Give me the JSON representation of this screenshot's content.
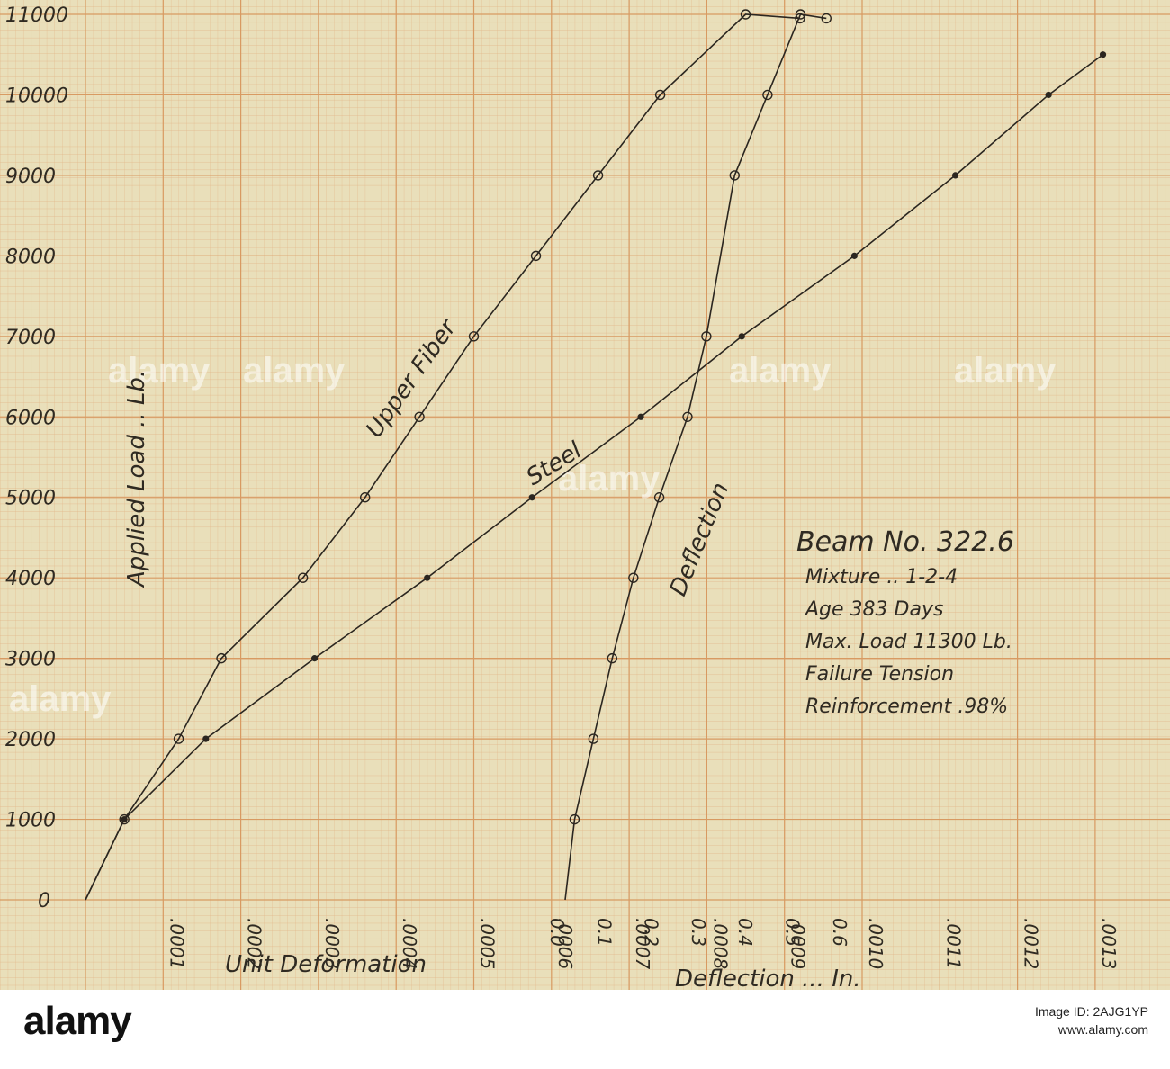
{
  "chart_data": {
    "type": "line",
    "title": "Beam No. 322.6",
    "details": [
      "Mixture .. 1-2-4",
      "Age 383 Days",
      "Max. Load 11300 Lb.",
      "Failure Tension",
      "Reinforcement .98%"
    ],
    "ylabel": "Applied Load .. Lb.",
    "xlabel": "Unit Deformation",
    "x2label": "Deflection ... In.",
    "ylim": [
      0,
      11000
    ],
    "xlim": [
      0,
      0.0013
    ],
    "x2lim": [
      -0.03,
      0.68
    ],
    "y_ticks": [
      "0",
      "1000",
      "2000",
      "3000",
      "4000",
      "5000",
      "6000",
      "7000",
      "8000",
      "9000",
      "10000",
      "11000"
    ],
    "x_ticks": [
      ".0001",
      ".0002",
      ".0003",
      ".0004",
      ".0005",
      ".0006",
      ".0007",
      ".0008",
      ".0009",
      ".0010",
      ".0011",
      ".0012",
      ".0013"
    ],
    "x2_ticks": [
      "0.0",
      "0.1",
      "0.2",
      "0.3",
      "0.4",
      "0.5",
      "0.6"
    ],
    "grid": true,
    "series": [
      {
        "name": "Upper Fiber",
        "marker": "open",
        "axis": "x",
        "points": [
          [
            0.0,
            0
          ],
          [
            5e-05,
            1000
          ],
          [
            0.00012,
            2000
          ],
          [
            0.000175,
            3000
          ],
          [
            0.00028,
            4000
          ],
          [
            0.00036,
            5000
          ],
          [
            0.00043,
            6000
          ],
          [
            0.0005,
            7000
          ],
          [
            0.00058,
            8000
          ],
          [
            0.00066,
            9000
          ],
          [
            0.00074,
            10000
          ],
          [
            0.00085,
            11000
          ],
          [
            0.00092,
            10950
          ]
        ]
      },
      {
        "name": "Steel",
        "marker": "filled",
        "axis": "x",
        "points": [
          [
            0.0,
            0
          ],
          [
            5e-05,
            1000
          ],
          [
            0.000155,
            2000
          ],
          [
            0.000295,
            3000
          ],
          [
            0.00044,
            4000
          ],
          [
            0.000575,
            5000
          ],
          [
            0.000715,
            6000
          ],
          [
            0.000845,
            7000
          ],
          [
            0.00099,
            8000
          ],
          [
            0.00112,
            9000
          ],
          [
            0.00124,
            10000
          ],
          [
            0.00131,
            10500
          ]
        ]
      },
      {
        "name": "Deflection",
        "marker": "open",
        "axis": "x2",
        "points": [
          [
            0.0,
            0
          ],
          [
            0.02,
            1000
          ],
          [
            0.06,
            2000
          ],
          [
            0.1,
            3000
          ],
          [
            0.145,
            4000
          ],
          [
            0.2,
            5000
          ],
          [
            0.26,
            6000
          ],
          [
            0.3,
            7000
          ],
          [
            0.36,
            9000
          ],
          [
            0.43,
            10000
          ],
          [
            0.5,
            11000
          ],
          [
            0.555,
            10950
          ]
        ]
      }
    ]
  },
  "watermarks": [
    "alamy",
    "alamy",
    "alamy",
    "alamy",
    "alamy",
    "alamy"
  ],
  "footer": {
    "logo": "alamy",
    "image_id_label": "Image ID: 2AJG1YP",
    "site": "www.alamy.com"
  }
}
